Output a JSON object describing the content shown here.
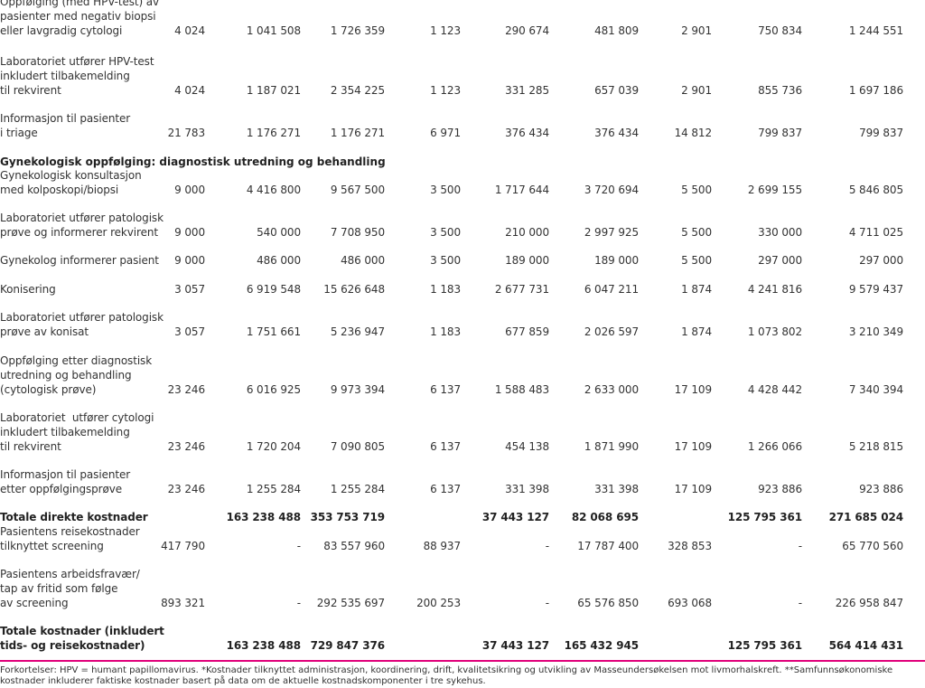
{
  "rows": [
    {
      "label": "Oppfølging (med HPV-test) av\npasienter med negativ biopsi\neller lavgradig cytologi",
      "values": [
        "4 024",
        "1 041 508",
        "1 726 359",
        "1 123",
        "290 674",
        "481 809",
        "2 901",
        "750 834",
        "1 244 551"
      ]
    },
    {
      "label": "Laboratoriet utfører HPV-test\ninkludert tilbakemelding\ntil rekvirent",
      "values": [
        "4 024",
        "1 187 021",
        "2 354 225",
        "1 123",
        "331 285",
        "657 039",
        "2 901",
        "855 736",
        "1 697 186"
      ]
    },
    {
      "label": "Informasjon til pasienter\ni triage",
      "values": [
        "21 783",
        "1 176 271",
        "1 176 271",
        "6 971",
        "376 434",
        "376 434",
        "14 812",
        "799 837",
        "799 837"
      ]
    },
    {
      "label": "Gynekologisk konsultasjon\nmed kolposkopi/biopsi",
      "values": [
        "9 000",
        "4 416 800",
        "9 567 500",
        "3 500",
        "1 717 644",
        "3 720 694",
        "5 500",
        "2 699 155",
        "5 846 805"
      ]
    },
    {
      "label": "Laboratoriet utfører patologisk\nprøve og informerer rekvirent",
      "values": [
        "9 000",
        "540 000",
        "7 708 950",
        "3 500",
        "210 000",
        "2 997 925",
        "5 500",
        "330 000",
        "4 711 025"
      ]
    },
    {
      "label": "Gynekolog informerer pasient",
      "values": [
        "9 000",
        "486 000",
        "486 000",
        "3 500",
        "189 000",
        "189 000",
        "5 500",
        "297 000",
        "297 000"
      ]
    },
    {
      "label": "Konisering",
      "values": [
        "3 057",
        "6 919 548",
        "15 626 648",
        "1 183",
        "2 677 731",
        "6 047 211",
        "1 874",
        "4 241 816",
        "9 579 437"
      ]
    },
    {
      "label": "Laboratoriet utfører patologisk\nprøve av konisat",
      "values": [
        "3 057",
        "1 751 661",
        "5 236 947",
        "1 183",
        "677 859",
        "2 026 597",
        "1 874",
        "1 073 802",
        "3 210 349"
      ]
    },
    {
      "label": "Oppfølging etter diagnostisk\nutredning og behandling\n(cytologisk prøve)",
      "values": [
        "23 246",
        "6 016 925",
        "9 973 394",
        "6 137",
        "1 588 483",
        "2 633 000",
        "17 109",
        "4 428 442",
        "7 340 394"
      ]
    },
    {
      "label": "Laboratoriet  utfører cytologi\ninkludert tilbakemelding\ntil rekvirent",
      "values": [
        "23 246",
        "1 720 204",
        "7 090 805",
        "6 137",
        "454 138",
        "1 871 990",
        "17 109",
        "1 266 066",
        "5 218 815"
      ]
    },
    {
      "label": "Informasjon til pasienter\netter oppfølgingsprøve",
      "values": [
        "23 246",
        "1 255 284",
        "1 255 284",
        "6 137",
        "331 398",
        "331 398",
        "17 109",
        "923 886",
        "923 886"
      ]
    },
    {
      "label": "Totale direkte kostnader",
      "values": [
        "",
        "163 238 488",
        "353 753 719",
        "",
        "37 443 127",
        "82 068 695",
        "",
        "125 795 361",
        "271 685 024"
      ]
    },
    {
      "label": "Pasientens reisekostnader\ntilknyttet screening",
      "values": [
        "417 790",
        "-",
        "83 557 960",
        "88 937",
        "-",
        "17 787 400",
        "328 853",
        "-",
        "65 770 560"
      ]
    },
    {
      "label": "Pasientens arbeidsfravær/\ntap av fritid som følge\nav screening",
      "values": [
        "893 321",
        "-",
        "292 535 697",
        "200 253",
        "-",
        "65 576 850",
        "693 068",
        "-",
        "226 958 847"
      ]
    },
    {
      "label": "Totale kostnader (inkludert\ntids- og reisekostnader)",
      "values": [
        "",
        "163 238 488",
        "729 847 376",
        "",
        "37 443 127",
        "165 432 945",
        "",
        "125 795 361",
        "564 414 431"
      ]
    }
  ],
  "section_heading": "Gynekologisk oppfølging: diagnostisk utredning og behandling",
  "footnote": "Forkortelser: HPV = humant papillomavirus. *Kostnader tilknyttet administrasjon, koordinering, drift, kvalitetsikring og utvikling av Masseundersøkelsen mot livmorhalskreft.  **Samfunnsøkonomiske kostnader inkluderer faktiske kostnader basert på data om de aktuelle kostnadskomponenter i tre sykehus.",
  "colors": {
    "rule": "#e0007a",
    "text": "#333333"
  }
}
